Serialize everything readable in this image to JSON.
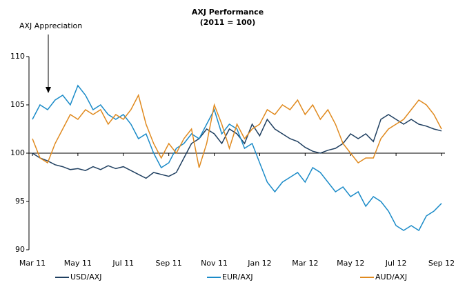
{
  "chart_data": {
    "type": "line",
    "title": "AXJ Performance",
    "subtitle": "(2011 = 100)",
    "annotation": "AXJ Appreciation",
    "categories": [
      "Mar 11",
      null,
      null,
      null,
      null,
      null,
      "May 11",
      null,
      null,
      null,
      null,
      null,
      "Jul 11",
      null,
      null,
      null,
      null,
      null,
      "Sep 11",
      null,
      null,
      null,
      null,
      null,
      "Nov 11",
      null,
      null,
      null,
      null,
      null,
      "Jan 12",
      null,
      null,
      null,
      null,
      null,
      "Mar 12",
      null,
      null,
      null,
      null,
      null,
      "May 12",
      null,
      null,
      null,
      null,
      null,
      "Jul 12",
      null,
      null,
      null,
      null,
      null,
      "Sep 12"
    ],
    "series": [
      {
        "name": "USD/AXJ",
        "color": "#1f3f60",
        "values": [
          100,
          99.5,
          99.2,
          98.8,
          98.6,
          98.3,
          98.4,
          98.2,
          98.6,
          98.3,
          98.7,
          98.4,
          98.6,
          98.2,
          97.8,
          97.4,
          98.0,
          97.8,
          97.6,
          98.0,
          99.5,
          101.0,
          101.5,
          102.5,
          102.0,
          101.0,
          102.5,
          102.0,
          101.0,
          103.0,
          101.8,
          103.5,
          102.5,
          102.0,
          101.5,
          101.2,
          100.6,
          100.2,
          100.0,
          100.3,
          100.5,
          101.0,
          102.0,
          101.5,
          102.0,
          101.2,
          103.5,
          104.0,
          103.5,
          103.0,
          103.5,
          103.0,
          102.8,
          102.5,
          102.3
        ]
      },
      {
        "name": "EUR/AXJ",
        "color": "#1b8bc8",
        "values": [
          103.5,
          105,
          104.5,
          105.5,
          106,
          105,
          107,
          106,
          104.5,
          105,
          104,
          103.5,
          104,
          103,
          101.5,
          102,
          100,
          98.5,
          99,
          100.5,
          101,
          102,
          101.5,
          103,
          104.5,
          102,
          103,
          102.5,
          100.5,
          101,
          99,
          97,
          96,
          97,
          97.5,
          98,
          97,
          98.5,
          98,
          97,
          96,
          96.5,
          95.5,
          96,
          94.5,
          95.5,
          95,
          94,
          92.5,
          92,
          92.5,
          92,
          93.5,
          94,
          94.8
        ]
      },
      {
        "name": "AUD/AXJ",
        "color": "#e08a1f",
        "values": [
          101.5,
          99.5,
          99,
          101,
          102.5,
          104,
          103.5,
          104.5,
          104,
          104.5,
          103,
          104,
          103.5,
          104.5,
          106,
          103,
          101,
          99.5,
          101,
          100,
          101.5,
          102.5,
          98.5,
          101,
          105,
          103,
          100.5,
          103,
          101.5,
          102.5,
          103,
          104.5,
          104,
          105,
          104.5,
          105.5,
          104,
          105,
          103.5,
          104.5,
          103,
          101,
          100,
          99,
          99.5,
          99.5,
          101.5,
          102.5,
          103,
          103.5,
          104.5,
          105.5,
          105,
          104,
          102.5
        ]
      }
    ],
    "ylim": [
      90,
      110
    ],
    "yticks": [
      90,
      95,
      100,
      105,
      110
    ],
    "x_axis_crossing": 100,
    "legend": "bottom"
  }
}
